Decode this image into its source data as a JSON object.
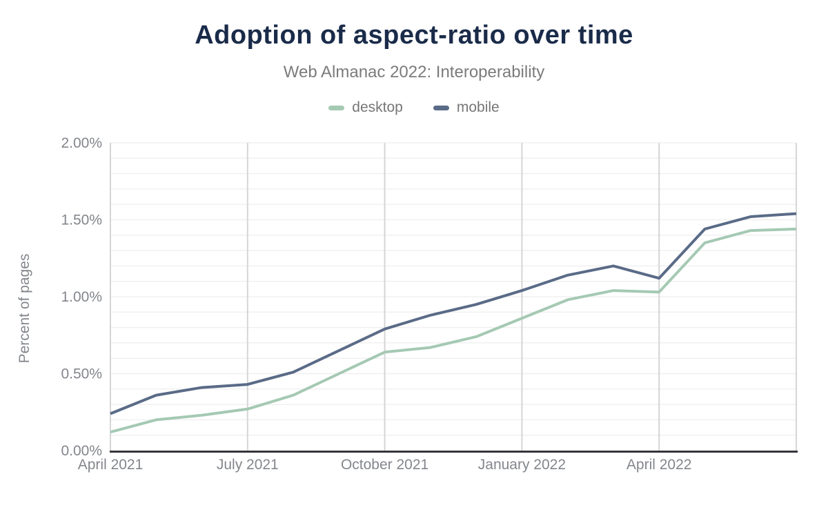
{
  "chart_data": {
    "type": "line",
    "title": "Adoption of aspect-ratio over time",
    "subtitle": "Web Almanac 2022: Interoperability",
    "ylabel": "Percent of pages",
    "unit": "%",
    "x": [
      "2021-04",
      "2021-05",
      "2021-06",
      "2021-07",
      "2021-08",
      "2021-09",
      "2021-10",
      "2021-11",
      "2021-12",
      "2022-01",
      "2022-02",
      "2022-03",
      "2022-04",
      "2022-05",
      "2022-06",
      "2022-07"
    ],
    "series": [
      {
        "name": "desktop",
        "color": "#a5c9b3",
        "values": [
          0.12,
          0.2,
          0.23,
          0.27,
          0.36,
          0.5,
          0.64,
          0.67,
          0.74,
          0.86,
          0.98,
          1.04,
          1.03,
          1.35,
          1.43,
          1.44
        ]
      },
      {
        "name": "mobile",
        "color": "#5a6b87",
        "values": [
          0.24,
          0.36,
          0.41,
          0.43,
          0.51,
          0.65,
          0.79,
          0.88,
          0.95,
          1.04,
          1.14,
          1.2,
          1.12,
          1.44,
          1.52,
          1.54
        ]
      }
    ],
    "ylim": [
      0,
      2
    ],
    "yticks": [
      {
        "v": 0.0,
        "label": "0.00%"
      },
      {
        "v": 0.5,
        "label": "0.50%"
      },
      {
        "v": 1.0,
        "label": "1.00%"
      },
      {
        "v": 1.5,
        "label": "1.50%"
      },
      {
        "v": 2.0,
        "label": "2.00%"
      }
    ],
    "xticks": [
      {
        "i": 0,
        "label": "April 2021"
      },
      {
        "i": 3,
        "label": "July 2021"
      },
      {
        "i": 6,
        "label": "October 2021"
      },
      {
        "i": 9,
        "label": "January 2022"
      },
      {
        "i": 12,
        "label": "April 2022"
      }
    ],
    "vgridlines": [
      3,
      6,
      9,
      12,
      15
    ],
    "grid": {
      "minor_on": true,
      "minor_step": 0.1
    },
    "legend_position": "top",
    "colors": {
      "title": "#1a2b49",
      "subtitle": "#7b7b7b",
      "tick_text": "#83868b",
      "minor_grid": "#f0f0f0",
      "major_grid": "#d5d5d5",
      "axis_line": "#35363a",
      "background": "#ffffff"
    }
  }
}
